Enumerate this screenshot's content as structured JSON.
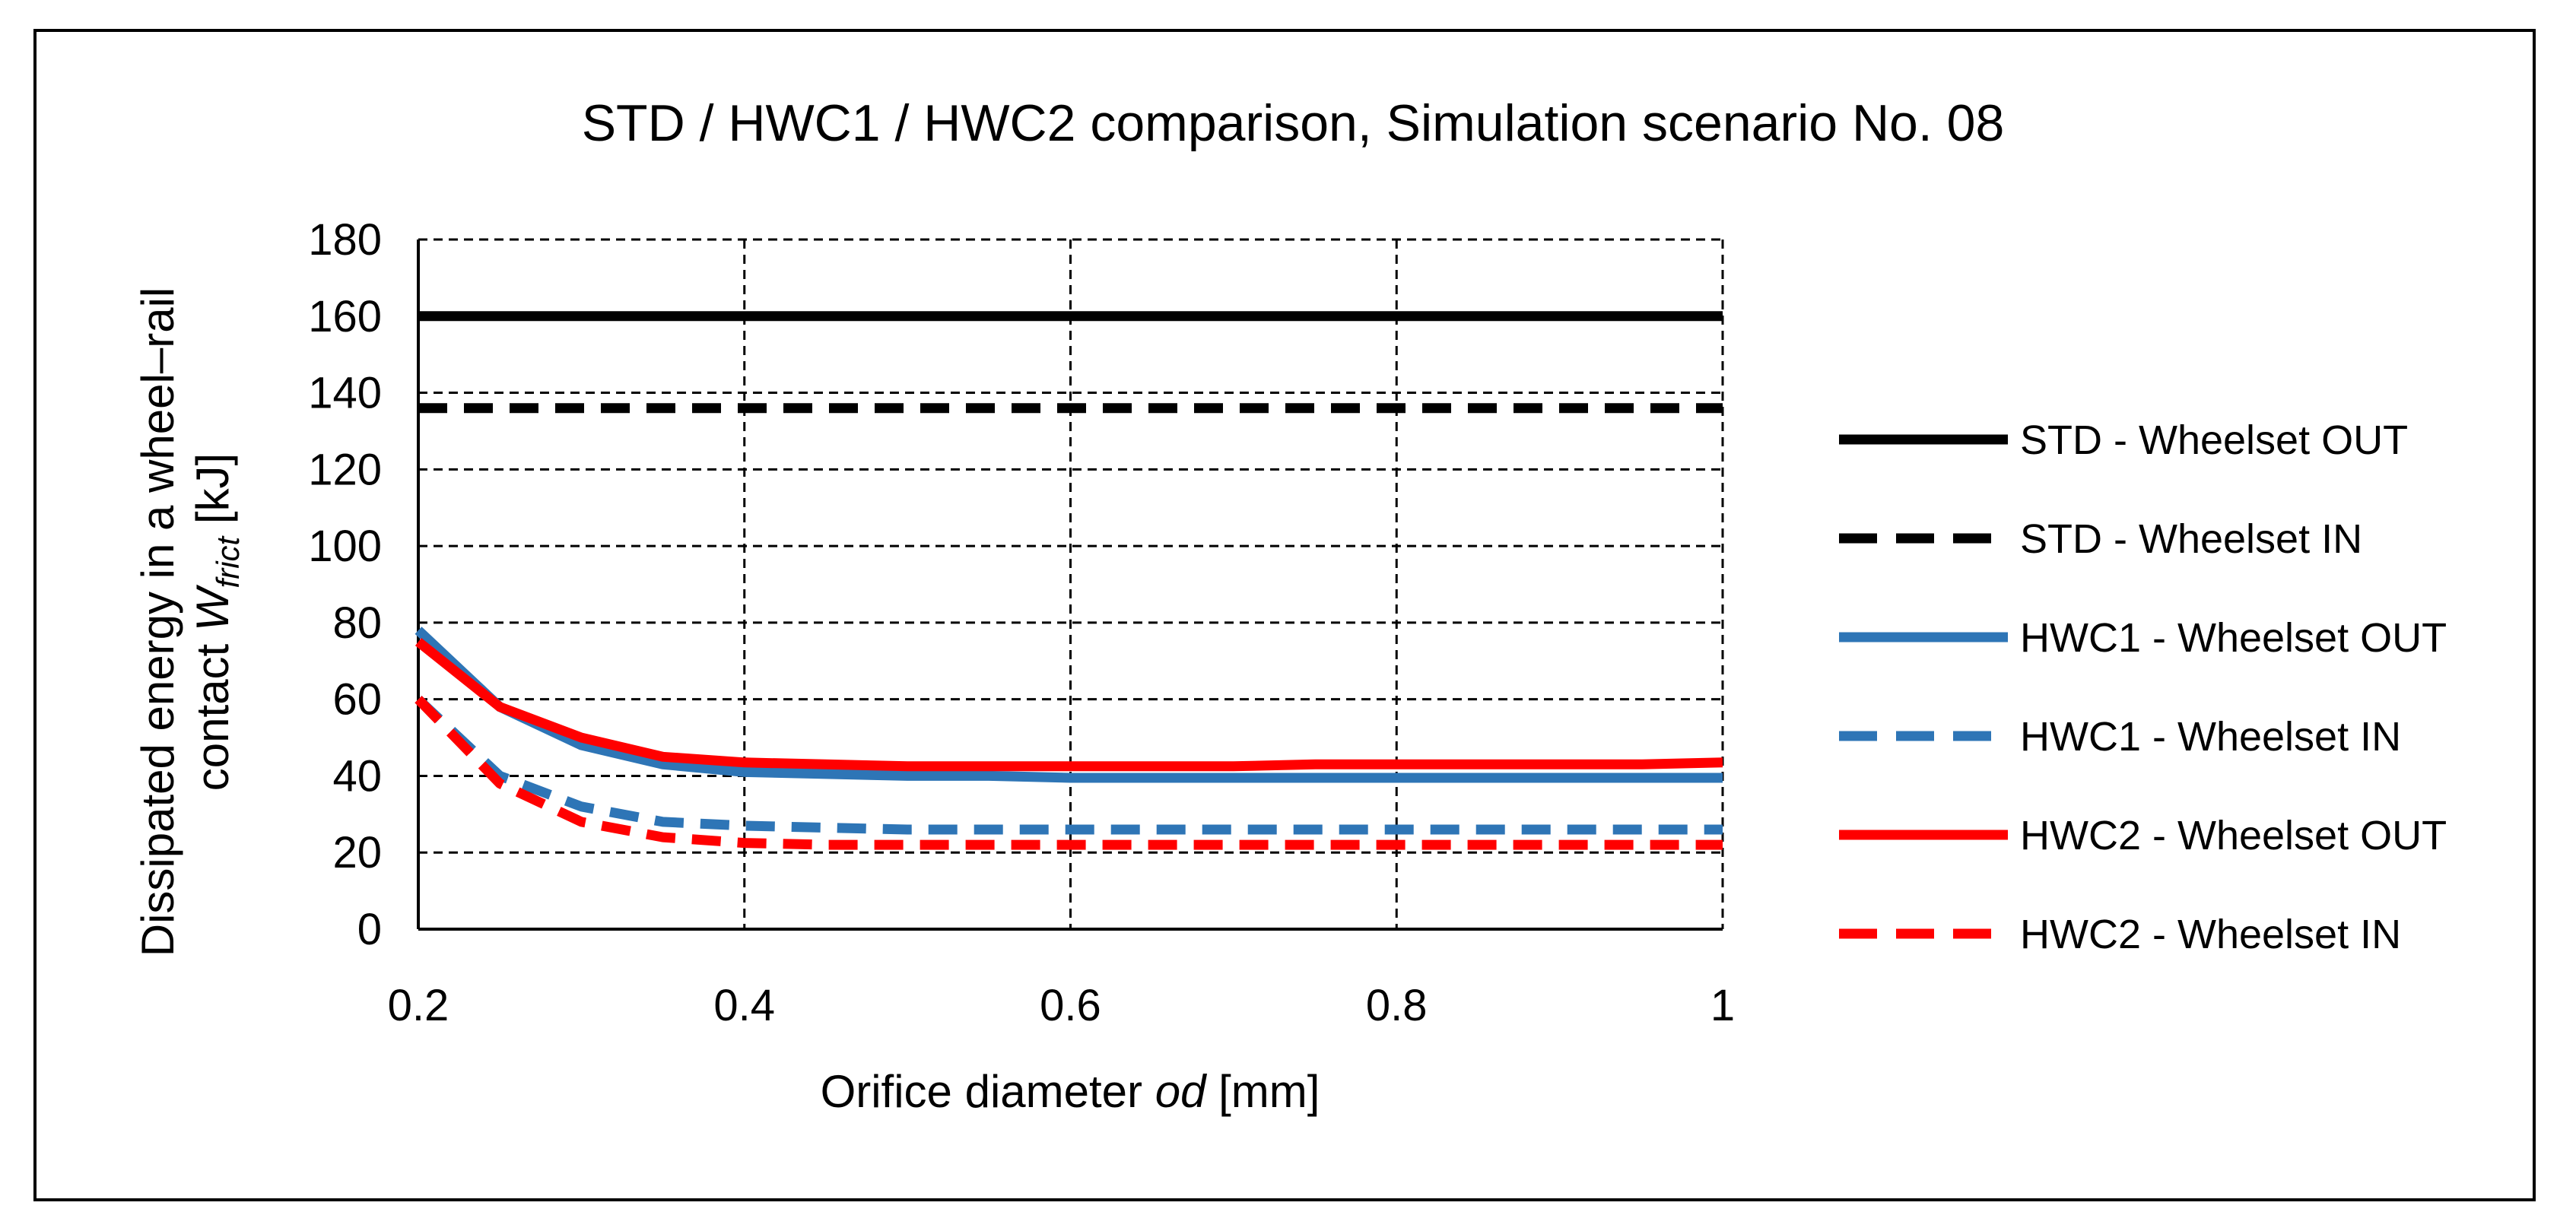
{
  "chart_data": {
    "type": "line",
    "title": "STD / HWC1 / HWC2 comparison, Simulation scenario No. 08",
    "xlabel": {
      "prefix": "Orifice diameter ",
      "italic": "od",
      "suffix": " [mm]"
    },
    "ylabel": {
      "line1": "Dissipated energy in a wheel–rail",
      "line2_prefix": "contact ",
      "line2_var": "W",
      "line2_sub": "frict",
      "line2_suffix": "  [kJ]"
    },
    "xlim": [
      0.2,
      1.0
    ],
    "ylim": [
      0,
      180
    ],
    "xticks": [
      0.2,
      0.4,
      0.6,
      0.8,
      1.0
    ],
    "xtick_labels": [
      "0.2",
      "0.4",
      "0.6",
      "0.8",
      "1"
    ],
    "yticks": [
      0,
      20,
      40,
      60,
      80,
      100,
      120,
      140,
      160,
      180
    ],
    "ytick_labels": [
      "0",
      "20",
      "40",
      "60",
      "80",
      "100",
      "120",
      "140",
      "160",
      "180"
    ],
    "grid": true,
    "legend_position": "right",
    "x": [
      0.2,
      0.25,
      0.3,
      0.35,
      0.4,
      0.45,
      0.5,
      0.55,
      0.6,
      0.65,
      0.7,
      0.75,
      0.8,
      0.85,
      0.9,
      0.95,
      1.0
    ],
    "series": [
      {
        "name": "STD - Wheelset OUT",
        "color": "#000000",
        "dash": false,
        "values": [
          160,
          160,
          160,
          160,
          160,
          160,
          160,
          160,
          160,
          160,
          160,
          160,
          160,
          160,
          160,
          160,
          160
        ]
      },
      {
        "name": "STD - Wheelset IN",
        "color": "#000000",
        "dash": true,
        "values": [
          136,
          136,
          136,
          136,
          136,
          136,
          136,
          136,
          136,
          136,
          136,
          136,
          136,
          136,
          136,
          136,
          136
        ]
      },
      {
        "name": "HWC1 - Wheelset OUT",
        "color": "#2E75B6",
        "dash": false,
        "values": [
          78,
          58,
          48,
          43,
          41,
          40.5,
          40,
          40,
          39.5,
          39.5,
          39.5,
          39.5,
          39.5,
          39.5,
          39.5,
          39.5,
          39.5
        ]
      },
      {
        "name": "HWC1 - Wheelset IN",
        "color": "#2E75B6",
        "dash": true,
        "values": [
          60,
          40,
          32,
          28,
          27,
          26.5,
          26,
          26,
          26,
          26,
          26,
          26,
          26,
          26,
          26,
          26,
          26
        ]
      },
      {
        "name": "HWC2 - Wheelset OUT",
        "color": "#FF0000",
        "dash": false,
        "values": [
          75,
          58,
          50,
          45,
          43.5,
          43,
          42.5,
          42.5,
          42.5,
          42.5,
          42.5,
          43,
          43,
          43,
          43,
          43,
          43.5
        ]
      },
      {
        "name": "HWC2 - Wheelset IN",
        "color": "#FF0000",
        "dash": true,
        "values": [
          60,
          38,
          28,
          24,
          22.5,
          22,
          22,
          22,
          22,
          22,
          22,
          22,
          22,
          22,
          22,
          22,
          22
        ]
      }
    ]
  }
}
